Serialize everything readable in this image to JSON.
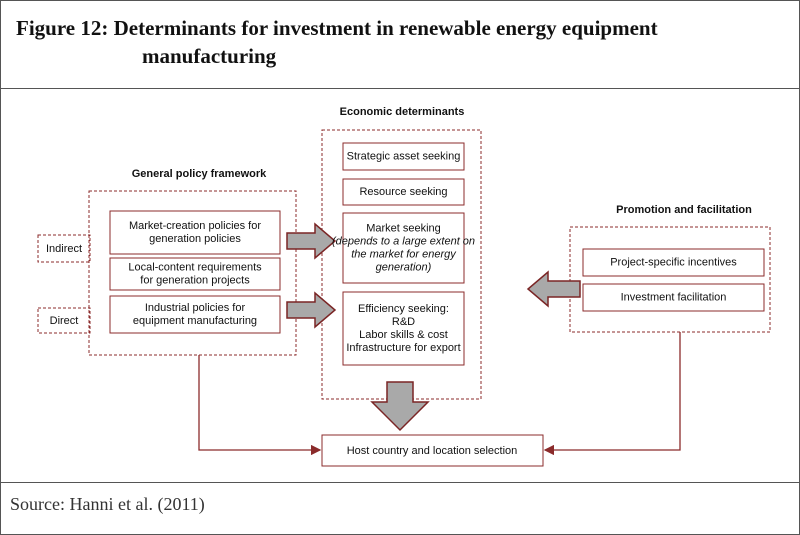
{
  "title": "Figure 12: Determinants for investment in renewable energy equipment manufacturing",
  "general_policy": {
    "heading": "General policy framework",
    "boxes": [
      [
        "Market-creation policies for",
        "generation policies"
      ],
      [
        "Local-content requirements",
        "for generation projects"
      ],
      [
        "Industrial policies for",
        "equipment manufacturing"
      ]
    ],
    "side_labels": [
      "Indirect",
      "Direct"
    ]
  },
  "economic": {
    "heading": "Economic determinants",
    "boxes": [
      [
        "Strategic asset seeking"
      ],
      [
        "Resource seeking"
      ],
      [
        "Market seeking",
        "(depends to a large  extent on",
        "the market for energy",
        "generation)"
      ],
      [
        "Efficiency seeking:",
        "R&D",
        "Labor skills & cost",
        "Infrastructure for export"
      ]
    ]
  },
  "promotion": {
    "heading": "Promotion and facilitation",
    "boxes": [
      [
        "Project-specific incentives"
      ],
      [
        "Investment facilitation"
      ]
    ]
  },
  "outcome": "Host country and location selection",
  "source": "Source: Hanni et al. (2011)"
}
